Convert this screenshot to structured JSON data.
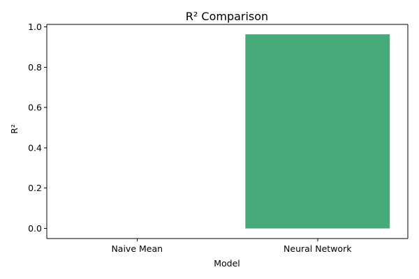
{
  "chart_data": {
    "type": "bar",
    "title": "R² Comparison",
    "xlabel": "Model",
    "ylabel": "R²",
    "categories": [
      "Naive Mean",
      "Neural Network"
    ],
    "values": [
      0.0,
      0.963
    ],
    "ylim": [
      -0.05,
      1.012
    ],
    "yticks": [
      0.0,
      0.2,
      0.4,
      0.6,
      0.8,
      1.0
    ],
    "ytick_labels": [
      "0.0",
      "0.2",
      "0.4",
      "0.6",
      "0.8",
      "1.0"
    ],
    "bar_colors": [
      "#4C9BE8",
      "#46AA7A"
    ],
    "grid": false,
    "legend": "none"
  }
}
